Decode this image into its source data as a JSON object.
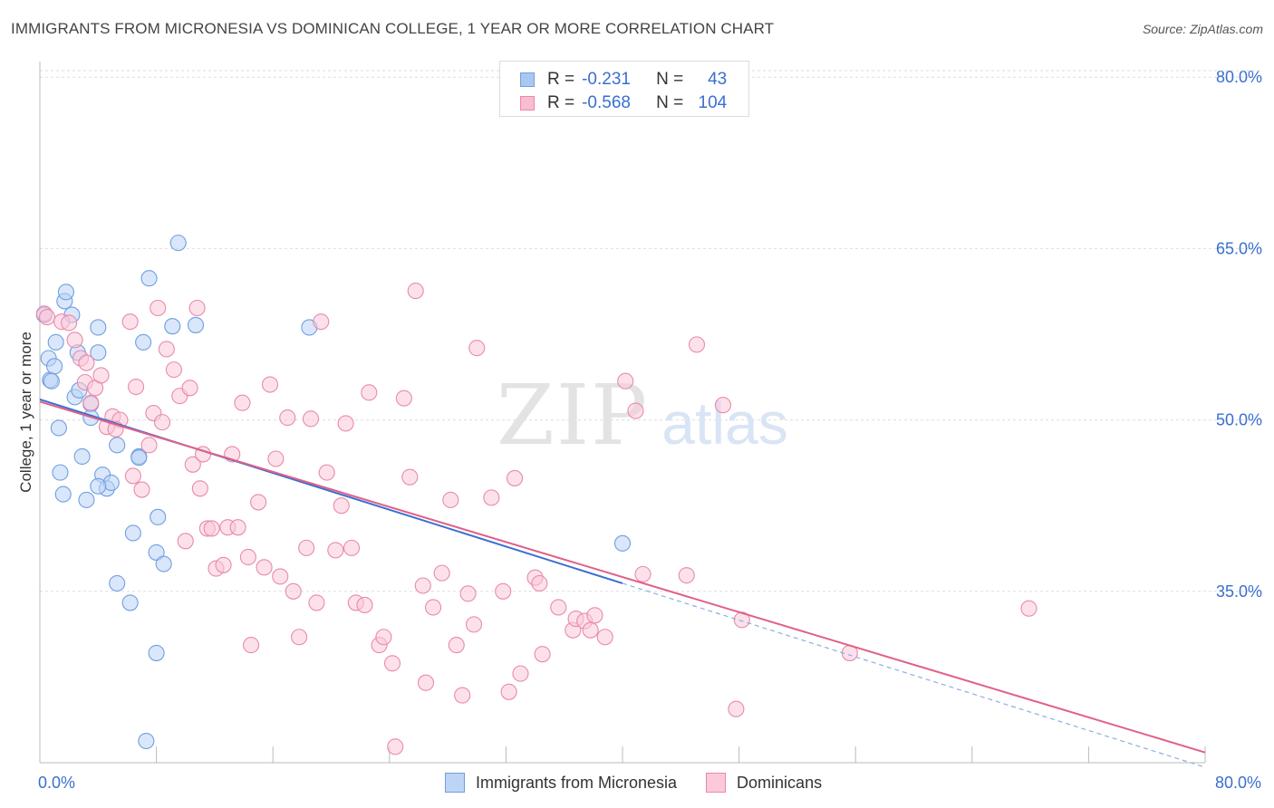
{
  "title": "IMMIGRANTS FROM MICRONESIA VS DOMINICAN COLLEGE, 1 YEAR OR MORE CORRELATION CHART",
  "source": "Source: ZipAtlas.com",
  "watermark": {
    "zip": "ZIP",
    "atlas": "atlas"
  },
  "legend_top": {
    "rows": [
      {
        "r_label": "R =",
        "r_value": "-0.231",
        "n_label": "N =",
        "n_value": "43",
        "color": "#a9c8f0",
        "border": "#6f9fe0"
      },
      {
        "r_label": "R =",
        "r_value": "-0.568",
        "n_label": "N =",
        "n_value": "104",
        "color": "#f8bdd0",
        "border": "#e88aab"
      }
    ]
  },
  "legend_bottom": [
    {
      "label": "Immigrants from Micronesia",
      "color": "#bcd4f6",
      "border": "#6f9fe0"
    },
    {
      "label": "Dominicans",
      "color": "#fbc9d9",
      "border": "#e88aab"
    }
  ],
  "chart_data": {
    "type": "scatter",
    "ylabel": "College, 1 year or more",
    "xlim": [
      0,
      80
    ],
    "ylim": [
      20,
      82
    ],
    "y_ticks": [
      {
        "value": 35,
        "label": "35.0%"
      },
      {
        "value": 50,
        "label": "50.0%"
      },
      {
        "value": 65,
        "label": "65.0%"
      },
      {
        "value": 80,
        "label": "80.0%"
      }
    ],
    "x_tick_labels": [
      {
        "value": 0,
        "label": "0.0%"
      },
      {
        "value": 80,
        "label": "80.0%"
      }
    ],
    "grid": true,
    "series": [
      {
        "name": "Immigrants from Micronesia",
        "color": "#6f9fe0",
        "fill": "#bcd4f6",
        "trend": {
          "x0": 0,
          "y0": 51.8,
          "x1": 40,
          "y1": 35.7,
          "dash_to_x": 80,
          "dash_to_y": 19.6
        },
        "points": [
          [
            0.3,
            59.2
          ],
          [
            0.6,
            55.4
          ],
          [
            0.7,
            53.5
          ],
          [
            0.8,
            53.4
          ],
          [
            1.0,
            54.7
          ],
          [
            1.1,
            56.8
          ],
          [
            1.3,
            49.3
          ],
          [
            1.4,
            45.4
          ],
          [
            1.6,
            43.5
          ],
          [
            1.7,
            60.4
          ],
          [
            1.8,
            61.2
          ],
          [
            2.2,
            59.2
          ],
          [
            2.4,
            52.0
          ],
          [
            2.6,
            55.9
          ],
          [
            2.7,
            52.6
          ],
          [
            2.9,
            46.8
          ],
          [
            3.2,
            43.0
          ],
          [
            3.5,
            51.4
          ],
          [
            3.5,
            50.2
          ],
          [
            4.0,
            55.9
          ],
          [
            4.0,
            58.1
          ],
          [
            4.3,
            45.2
          ],
          [
            4.6,
            44.0
          ],
          [
            4.9,
            44.5
          ],
          [
            5.3,
            47.8
          ],
          [
            5.3,
            35.7
          ],
          [
            6.2,
            34.0
          ],
          [
            6.4,
            40.1
          ],
          [
            6.8,
            46.8
          ],
          [
            7.1,
            56.8
          ],
          [
            7.5,
            62.4
          ],
          [
            8.0,
            38.4
          ],
          [
            8.0,
            29.6
          ],
          [
            8.1,
            41.5
          ],
          [
            8.5,
            37.4
          ],
          [
            9.1,
            58.2
          ],
          [
            9.5,
            65.5
          ],
          [
            10.7,
            58.3
          ],
          [
            7.3,
            21.9
          ],
          [
            18.5,
            58.1
          ],
          [
            40.0,
            39.2
          ],
          [
            6.8,
            46.7
          ],
          [
            4.0,
            44.2
          ]
        ]
      },
      {
        "name": "Dominicans",
        "color": "#e88aab",
        "fill": "#fbc9d9",
        "trend": {
          "x0": 0,
          "y0": 51.6,
          "x1": 80,
          "y1": 20.9
        },
        "points": [
          [
            0.3,
            59.3
          ],
          [
            0.5,
            59.0
          ],
          [
            1.5,
            58.6
          ],
          [
            2.0,
            58.5
          ],
          [
            2.4,
            57.0
          ],
          [
            2.8,
            55.4
          ],
          [
            3.1,
            53.3
          ],
          [
            3.2,
            55.0
          ],
          [
            3.5,
            51.5
          ],
          [
            3.8,
            52.8
          ],
          [
            4.2,
            53.9
          ],
          [
            4.6,
            49.4
          ],
          [
            5.0,
            50.3
          ],
          [
            5.5,
            50.0
          ],
          [
            6.2,
            58.6
          ],
          [
            6.4,
            45.1
          ],
          [
            6.6,
            52.9
          ],
          [
            7.0,
            43.9
          ],
          [
            7.5,
            47.8
          ],
          [
            7.8,
            50.6
          ],
          [
            8.1,
            59.8
          ],
          [
            8.4,
            49.8
          ],
          [
            8.7,
            56.2
          ],
          [
            9.2,
            54.4
          ],
          [
            9.6,
            52.1
          ],
          [
            10.0,
            39.4
          ],
          [
            10.3,
            52.8
          ],
          [
            10.5,
            46.1
          ],
          [
            10.8,
            59.8
          ],
          [
            11.2,
            47.0
          ],
          [
            11.5,
            40.5
          ],
          [
            11.8,
            40.5
          ],
          [
            12.1,
            37.0
          ],
          [
            12.6,
            37.3
          ],
          [
            12.9,
            40.6
          ],
          [
            13.2,
            47.0
          ],
          [
            13.6,
            40.6
          ],
          [
            13.9,
            51.5
          ],
          [
            14.3,
            38.0
          ],
          [
            14.5,
            30.3
          ],
          [
            15.0,
            42.8
          ],
          [
            15.4,
            37.1
          ],
          [
            15.8,
            53.1
          ],
          [
            16.2,
            46.6
          ],
          [
            16.5,
            36.3
          ],
          [
            17.0,
            50.2
          ],
          [
            17.4,
            35.0
          ],
          [
            17.8,
            31.0
          ],
          [
            18.3,
            38.8
          ],
          [
            18.6,
            50.1
          ],
          [
            19.0,
            34.0
          ],
          [
            19.3,
            58.6
          ],
          [
            19.7,
            45.4
          ],
          [
            20.3,
            38.6
          ],
          [
            20.7,
            42.5
          ],
          [
            21.0,
            49.7
          ],
          [
            21.4,
            38.8
          ],
          [
            21.7,
            34.0
          ],
          [
            22.3,
            33.8
          ],
          [
            22.6,
            52.4
          ],
          [
            23.3,
            30.3
          ],
          [
            23.6,
            31.0
          ],
          [
            24.2,
            28.7
          ],
          [
            25.0,
            51.9
          ],
          [
            25.4,
            45.0
          ],
          [
            25.8,
            61.3
          ],
          [
            26.3,
            35.5
          ],
          [
            27.0,
            33.6
          ],
          [
            27.6,
            36.6
          ],
          [
            28.2,
            43.0
          ],
          [
            28.6,
            30.3
          ],
          [
            29.4,
            34.8
          ],
          [
            29.8,
            32.1
          ],
          [
            30.0,
            56.3
          ],
          [
            31.0,
            43.2
          ],
          [
            31.8,
            35.0
          ],
          [
            32.2,
            26.2
          ],
          [
            32.6,
            44.9
          ],
          [
            34.0,
            36.2
          ],
          [
            34.3,
            35.7
          ],
          [
            34.5,
            29.5
          ],
          [
            35.6,
            33.6
          ],
          [
            36.6,
            31.6
          ],
          [
            36.8,
            32.6
          ],
          [
            37.4,
            32.4
          ],
          [
            37.8,
            31.6
          ],
          [
            38.1,
            32.9
          ],
          [
            38.8,
            31.0
          ],
          [
            40.2,
            53.4
          ],
          [
            40.9,
            50.8
          ],
          [
            41.4,
            36.5
          ],
          [
            44.4,
            36.4
          ],
          [
            45.1,
            56.6
          ],
          [
            46.9,
            51.3
          ],
          [
            47.8,
            24.7
          ],
          [
            48.2,
            32.5
          ],
          [
            55.6,
            29.6
          ],
          [
            67.9,
            33.5
          ],
          [
            24.4,
            21.4
          ],
          [
            26.5,
            27.0
          ],
          [
            33.0,
            27.8
          ],
          [
            29.0,
            25.9
          ],
          [
            11.0,
            44.0
          ],
          [
            5.2,
            49.2
          ]
        ]
      }
    ]
  }
}
